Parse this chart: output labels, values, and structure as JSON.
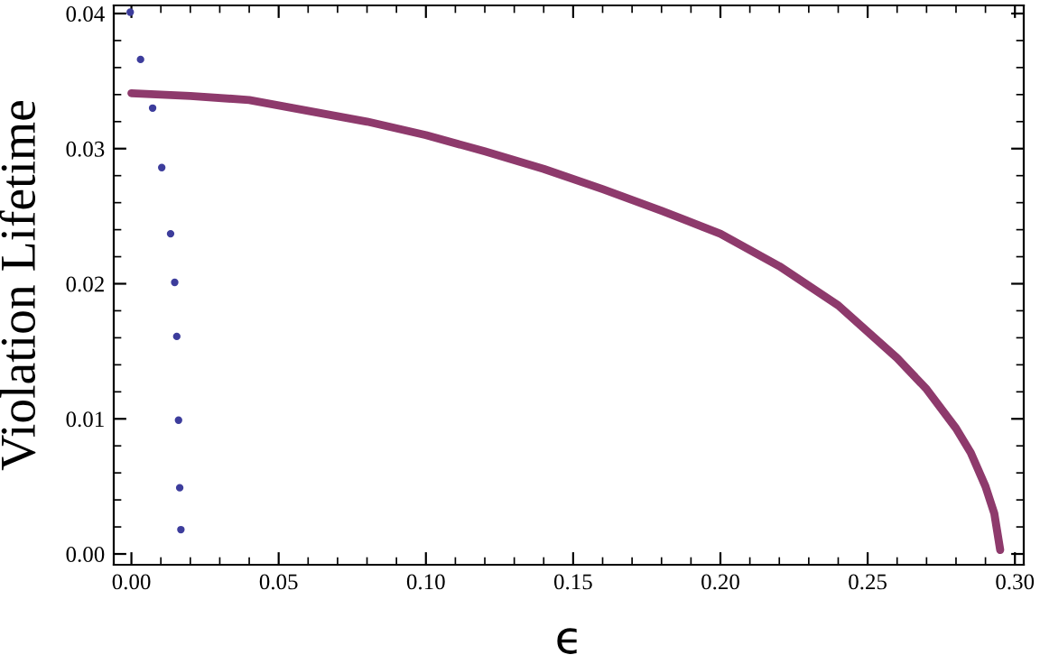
{
  "chart_data": {
    "type": "scatter",
    "xlabel": "ϵ",
    "ylabel": "Violation Lifetime",
    "xlim": [
      -0.006,
      0.303
    ],
    "ylim": [
      -0.0008,
      0.0406
    ],
    "xticks": [
      {
        "value": 0,
        "label": "0.00"
      },
      {
        "value": 0.05,
        "label": "0.05"
      },
      {
        "value": 0.1,
        "label": "0.10"
      },
      {
        "value": 0.15,
        "label": "0.15"
      },
      {
        "value": 0.2,
        "label": "0.20"
      },
      {
        "value": 0.25,
        "label": "0.25"
      },
      {
        "value": 0.3,
        "label": "0.30"
      }
    ],
    "yticks": [
      {
        "value": 0,
        "label": "0.00"
      },
      {
        "value": 0.01,
        "label": "0.01"
      },
      {
        "value": 0.02,
        "label": "0.02"
      },
      {
        "value": 0.03,
        "label": "0.03"
      },
      {
        "value": 0.04,
        "label": "0.04"
      }
    ],
    "grid": false,
    "series": [
      {
        "marker": "circle",
        "color": "#3d3d9c",
        "x": [
          -0.0004,
          0.0031,
          0.0072,
          0.0103,
          0.0133,
          0.0147,
          0.0154,
          0.016,
          0.0164,
          0.0168
        ],
        "values": [
          0.0401,
          0.0366,
          0.033,
          0.0286,
          0.0237,
          0.0201,
          0.0161,
          0.0099,
          0.0049,
          0.0018
        ]
      },
      {
        "type": "line",
        "marker": "none",
        "color": "#8e3a6c",
        "x": [
          0,
          0.02,
          0.04,
          0.06,
          0.08,
          0.1,
          0.12,
          0.14,
          0.16,
          0.18,
          0.2,
          0.22,
          0.24,
          0.26,
          0.27,
          0.28,
          0.285,
          0.29,
          0.293,
          0.295
        ],
        "values": [
          0.0341,
          0.0339,
          0.0336,
          0.0328,
          0.032,
          0.031,
          0.0298,
          0.0285,
          0.027,
          0.0254,
          0.0237,
          0.0213,
          0.0184,
          0.0145,
          0.0122,
          0.0093,
          0.0075,
          0.005,
          0.003,
          0.0003
        ]
      }
    ]
  }
}
